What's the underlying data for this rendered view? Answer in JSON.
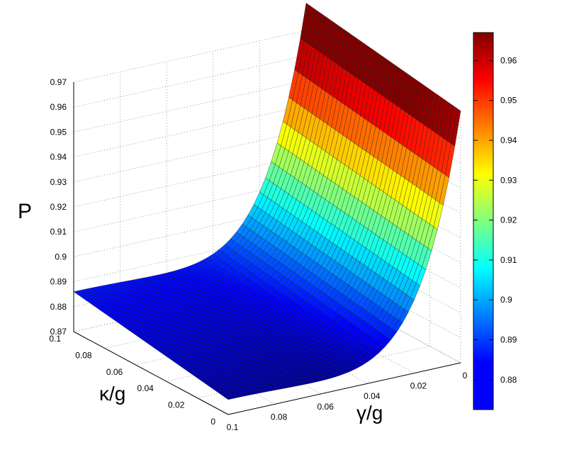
{
  "chart_data": {
    "type": "surface",
    "title": "",
    "zlabel": "P",
    "xlabel": "γ/g",
    "ylabel": "κ/g",
    "x_ticks": [
      "0.1",
      "0.08",
      "0.06",
      "0.04",
      "0.02",
      "0"
    ],
    "y_ticks": [
      "0",
      "0.02",
      "0.04",
      "0.06",
      "0.08",
      "0.1"
    ],
    "z_ticks": [
      "0.87",
      "0.88",
      "0.89",
      "0.9",
      "0.91",
      "0.92",
      "0.93",
      "0.94",
      "0.95",
      "0.96",
      "0.97"
    ],
    "colorbar_ticks": [
      "0.88",
      "0.89",
      "0.9",
      "0.91",
      "0.92",
      "0.93",
      "0.94",
      "0.95",
      "0.96"
    ],
    "xlim": [
      0,
      0.1
    ],
    "ylim": [
      0,
      0.1
    ],
    "zlim": [
      0.87,
      0.97
    ],
    "colormap": "jet",
    "colorbar_range": [
      0.8725,
      0.967
    ],
    "grid": true,
    "samples": [
      {
        "gamma": 0.1,
        "kappa": 0.1,
        "P": 0.886
      },
      {
        "gamma": 0.1,
        "kappa": 0.0,
        "P": 0.876
      },
      {
        "gamma": 0.06,
        "kappa": 0.04,
        "P": 0.876
      },
      {
        "gamma": 0.04,
        "kappa": 0.06,
        "P": 0.88
      },
      {
        "gamma": 0.01,
        "kappa": 0.05,
        "P": 0.925
      },
      {
        "gamma": 0.0,
        "kappa": 0.1,
        "P": 0.967
      },
      {
        "gamma": 0.0,
        "kappa": 0.0,
        "P": 0.967
      }
    ]
  }
}
